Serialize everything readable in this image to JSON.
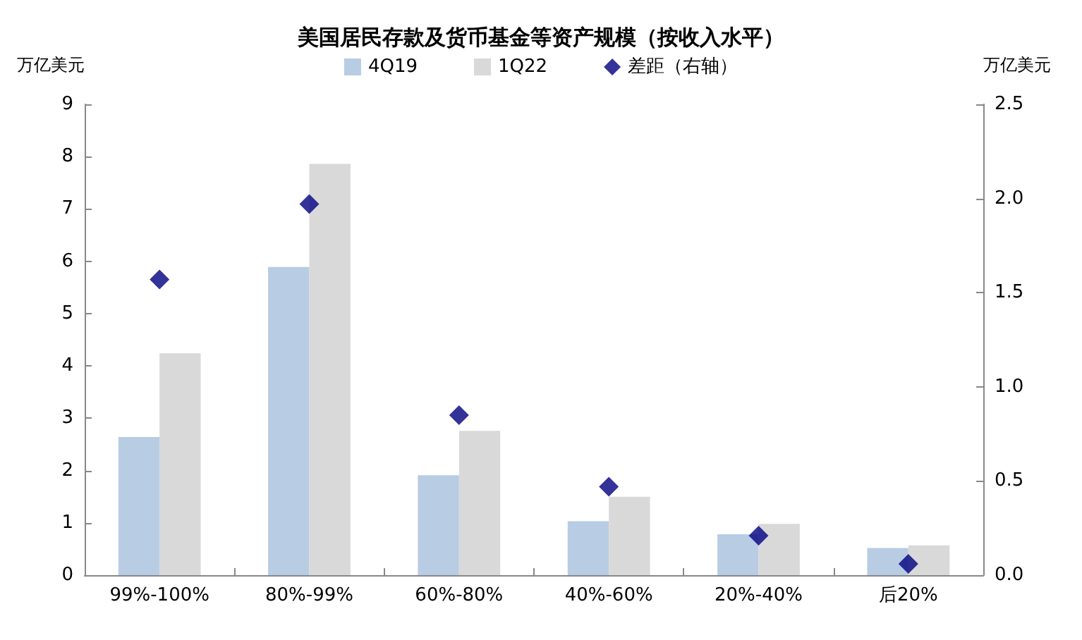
{
  "chart_data": {
    "type": "bar",
    "title": "美国居民存款及货币基金等资产规模（按收入水平）",
    "ylabel": "万亿美元",
    "y2label": "万亿美元",
    "categories": [
      "99%-100%",
      "80%-99%",
      "60%-80%",
      "40%-60%",
      "20%-40%",
      "后20%"
    ],
    "series": [
      {
        "name": "4Q19",
        "color": "#b8cce4",
        "values": [
          2.64,
          5.89,
          1.91,
          1.03,
          0.78,
          0.52
        ]
      },
      {
        "name": "1Q22",
        "color": "#d9d9d9",
        "values": [
          4.24,
          7.86,
          2.76,
          1.5,
          0.98,
          0.57
        ]
      },
      {
        "name": "差距（右轴）",
        "type": "scatter",
        "axis": "y2",
        "marker": "diamond",
        "color": "#000080",
        "x": [
          "99%-100%",
          "80%-99%",
          "60%-80%",
          "40%-60%",
          "20%-40%",
          "后20%"
        ],
        "values": [
          1.57,
          1.97,
          0.85,
          0.47,
          0.21,
          0.06
        ]
      }
    ],
    "ylim": [
      0,
      9
    ],
    "yticks": [
      0,
      1,
      2,
      3,
      4,
      5,
      6,
      7,
      8,
      9
    ],
    "y2lim": [
      0,
      2.5
    ],
    "y2ticks": [
      {
        "value": 0,
        "label": "0.0"
      },
      0.5,
      {
        "value": 1,
        "label": "1.0"
      },
      1.5,
      {
        "value": 2,
        "label": "2.0"
      },
      2.5
    ],
    "grid": false,
    "legend": "top"
  }
}
